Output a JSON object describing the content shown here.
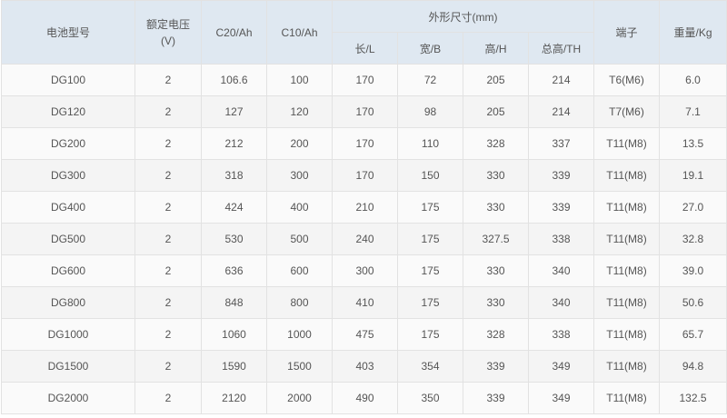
{
  "header": {
    "model": "电池型号",
    "voltage_lines": [
      "额定电压",
      "(V)"
    ],
    "c20": "C20/Ah",
    "c10": "C10/Ah",
    "dimensions": "外形尺寸(mm)",
    "length": "长/L",
    "width": "宽/B",
    "height": "高/H",
    "total_height": "总高/TH",
    "terminal": "端子",
    "weight": "重量/Kg"
  },
  "table": {
    "rows": [
      [
        "DG100",
        "2",
        "106.6",
        "100",
        "170",
        "72",
        "205",
        "214",
        "T6(M6)",
        "6.0"
      ],
      [
        "DG120",
        "2",
        "127",
        "120",
        "170",
        "98",
        "205",
        "214",
        "T7(M6)",
        "7.1"
      ],
      [
        "DG200",
        "2",
        "212",
        "200",
        "170",
        "110",
        "328",
        "337",
        "T11(M8)",
        "13.5"
      ],
      [
        "DG300",
        "2",
        "318",
        "300",
        "170",
        "150",
        "330",
        "339",
        "T11(M8)",
        "19.1"
      ],
      [
        "DG400",
        "2",
        "424",
        "400",
        "210",
        "175",
        "330",
        "339",
        "T11(M8)",
        "27.0"
      ],
      [
        "DG500",
        "2",
        "530",
        "500",
        "240",
        "175",
        "327.5",
        "338",
        "T11(M8)",
        "32.8"
      ],
      [
        "DG600",
        "2",
        "636",
        "600",
        "300",
        "175",
        "330",
        "340",
        "T11(M8)",
        "39.0"
      ],
      [
        "DG800",
        "2",
        "848",
        "800",
        "410",
        "175",
        "330",
        "340",
        "T11(M8)",
        "50.6"
      ],
      [
        "DG1000",
        "2",
        "1060",
        "1000",
        "475",
        "175",
        "328",
        "338",
        "T11(M8)",
        "65.7"
      ],
      [
        "DG1500",
        "2",
        "1590",
        "1500",
        "403",
        "354",
        "339",
        "349",
        "T11(M8)",
        "94.8"
      ],
      [
        "DG2000",
        "2",
        "2120",
        "2000",
        "490",
        "350",
        "339",
        "349",
        "T11(M8)",
        "132.5"
      ]
    ]
  }
}
